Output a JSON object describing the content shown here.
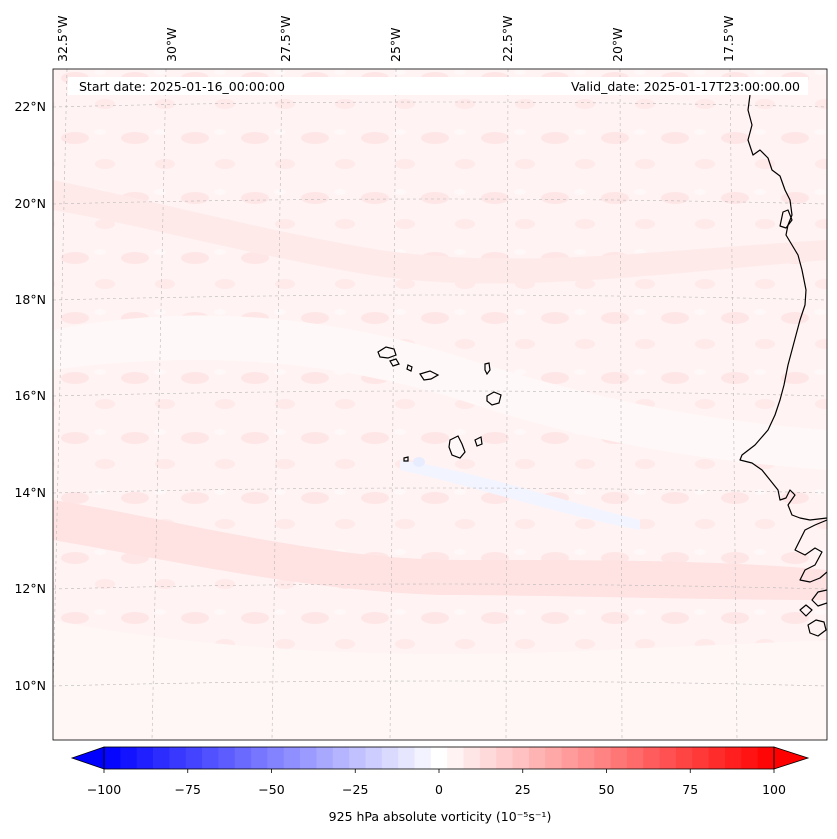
{
  "header": {
    "start_date": "Start date: 2025-01-16_00:00:00",
    "valid_date": "Valid_date: 2025-01-17T23:00:00.00"
  },
  "map": {
    "lon_labels": [
      "32.5°W",
      "30°W",
      "27.5°W",
      "25°W",
      "22.5°W",
      "20°W",
      "17.5°W"
    ],
    "lat_labels": [
      "22°N",
      "20°N",
      "18°N",
      "16°N",
      "14°N",
      "12°N",
      "10°N"
    ],
    "field": "925 hPa absolute vorticity"
  },
  "colorbar": {
    "label": "925 hPa absolute vorticity (10⁻⁵s⁻¹)",
    "ticks": [
      "−100",
      "−75",
      "−50",
      "−25",
      "0",
      "25",
      "50",
      "75",
      "100"
    ],
    "min": -100,
    "max": 100,
    "levels": 41,
    "colormap": "bwr",
    "extend": "both"
  },
  "colors": {
    "negative": "#0000ff",
    "neutral": "#ffffff",
    "positive": "#ff0000",
    "gridline": "#b8b8b8",
    "coastline": "#000000"
  }
}
